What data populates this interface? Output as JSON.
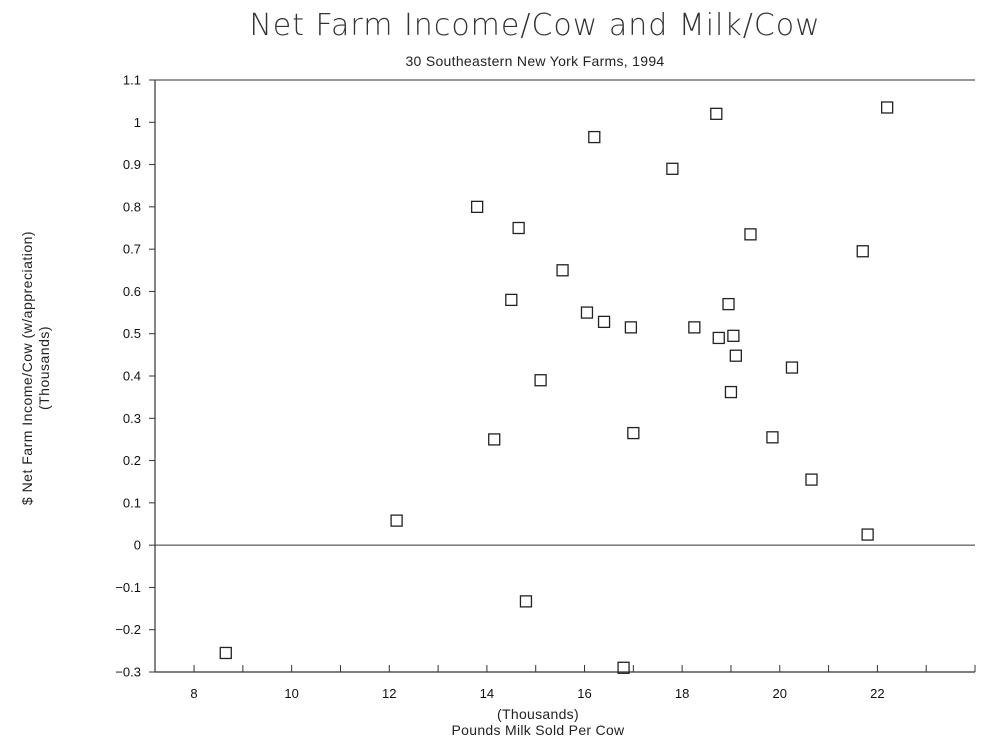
{
  "chart_data": {
    "type": "scatter",
    "title": "Net Farm Income/Cow and Milk/Cow",
    "subtitle": "30 Southeastern New York Farms, 1994",
    "xlabel": "Pounds Milk Sold Per Cow",
    "xlabel_units": "(Thousands)",
    "ylabel": "$ Net Farm Income/Cow (w/appreciation)",
    "ylabel_units": "(Thousands)",
    "xlim": [
      7.2,
      24.0
    ],
    "ylim": [
      -0.3,
      1.1
    ],
    "x_ticks": [
      8,
      10,
      12,
      14,
      16,
      18,
      20,
      22
    ],
    "y_ticks": [
      -0.3,
      -0.2,
      -0.1,
      0,
      0.1,
      0.2,
      0.3,
      0.4,
      0.5,
      0.6,
      0.7,
      0.8,
      0.9,
      1,
      1.1
    ],
    "y_tick_labels": [
      "-0.3",
      "-0.2",
      "-0.1",
      "0",
      "0.1",
      "0.2",
      "0.3",
      "0.4",
      "0.5",
      "0.6",
      "0.7",
      "0.8",
      "0.9",
      "1",
      "1.1"
    ],
    "grid": false,
    "marker": "hollow-square",
    "points": [
      {
        "x": 8.65,
        "y": -0.255
      },
      {
        "x": 12.15,
        "y": 0.058
      },
      {
        "x": 13.8,
        "y": 0.8
      },
      {
        "x": 14.15,
        "y": 0.25
      },
      {
        "x": 14.5,
        "y": 0.58
      },
      {
        "x": 14.65,
        "y": 0.75
      },
      {
        "x": 14.8,
        "y": -0.133
      },
      {
        "x": 15.1,
        "y": 0.39
      },
      {
        "x": 15.55,
        "y": 0.65
      },
      {
        "x": 16.05,
        "y": 0.55
      },
      {
        "x": 16.2,
        "y": 0.965
      },
      {
        "x": 16.4,
        "y": 0.528
      },
      {
        "x": 16.8,
        "y": -0.29
      },
      {
        "x": 16.95,
        "y": 0.515
      },
      {
        "x": 17.0,
        "y": 0.265
      },
      {
        "x": 17.8,
        "y": 0.89
      },
      {
        "x": 18.25,
        "y": 0.515
      },
      {
        "x": 18.7,
        "y": 1.02
      },
      {
        "x": 18.75,
        "y": 0.49
      },
      {
        "x": 18.95,
        "y": 0.57
      },
      {
        "x": 19.0,
        "y": 0.362
      },
      {
        "x": 19.05,
        "y": 0.495
      },
      {
        "x": 19.1,
        "y": 0.448
      },
      {
        "x": 19.4,
        "y": 0.735
      },
      {
        "x": 19.85,
        "y": 0.255
      },
      {
        "x": 20.25,
        "y": 0.42
      },
      {
        "x": 20.65,
        "y": 0.155
      },
      {
        "x": 21.7,
        "y": 0.695
      },
      {
        "x": 21.8,
        "y": 0.025
      },
      {
        "x": 22.2,
        "y": 1.035
      }
    ]
  },
  "colors": {
    "axis": "#333333",
    "marker_stroke": "#222222",
    "text": "#111111"
  }
}
